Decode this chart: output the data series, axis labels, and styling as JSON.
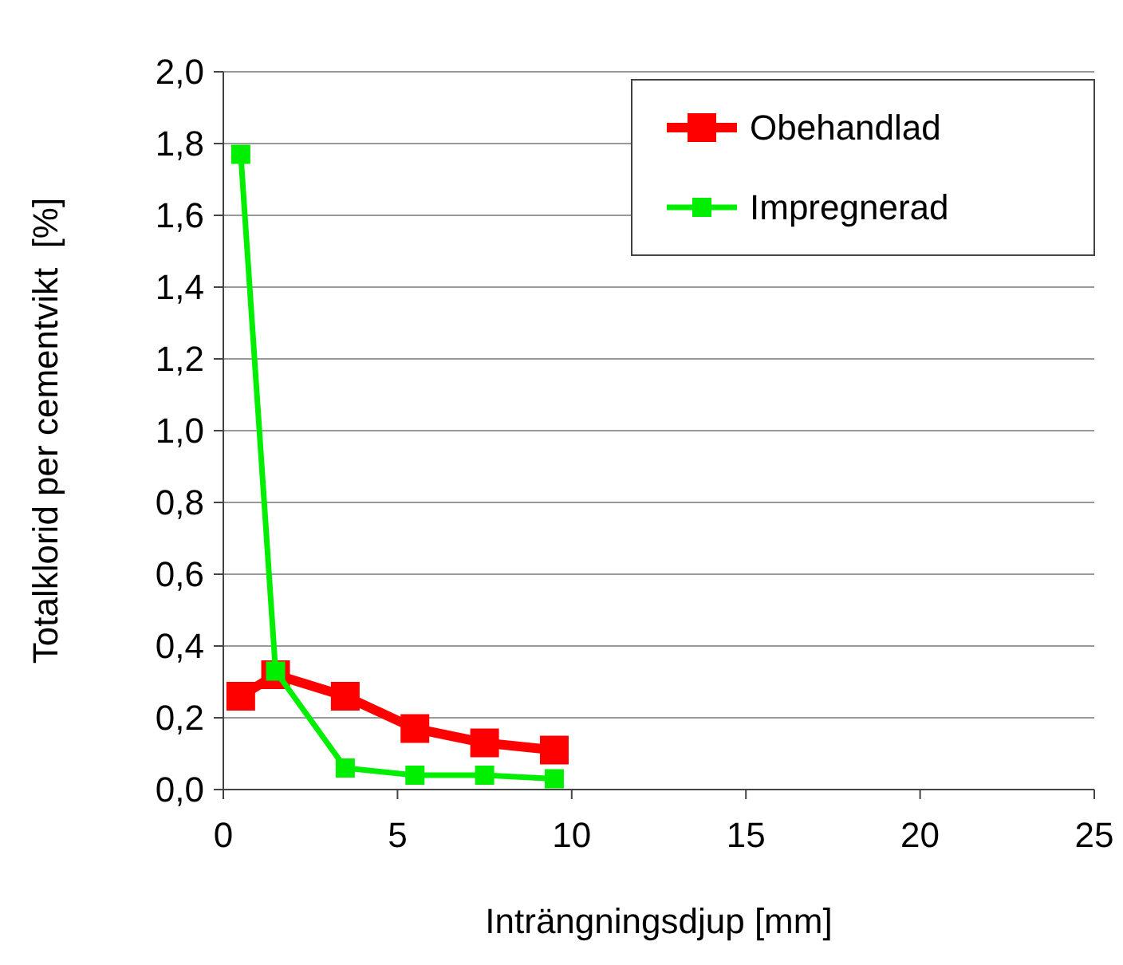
{
  "chart_data": {
    "type": "line",
    "xlabel": "Inträngningsdjup [mm]",
    "ylabel": "Totalklorid per cementvikt  [%]",
    "xlim": [
      0,
      25
    ],
    "xticks": [
      0,
      5,
      10,
      15,
      20,
      25
    ],
    "ylim": [
      0,
      2
    ],
    "yticks": [
      {
        "value": 0,
        "label": "0,0"
      },
      {
        "value": 0.2,
        "label": "0,2"
      },
      {
        "value": 0.4,
        "label": "0,4"
      },
      {
        "value": 0.6,
        "label": "0,6"
      },
      {
        "value": 0.8,
        "label": "0,8"
      },
      {
        "value": 1,
        "label": "1,0"
      },
      {
        "value": 1.2,
        "label": "1,2"
      },
      {
        "value": 1.4,
        "label": "1,4"
      },
      {
        "value": 1.6,
        "label": "1,6"
      },
      {
        "value": 1.8,
        "label": "1,8"
      },
      {
        "value": 2,
        "label": "2,0"
      }
    ],
    "grid": "y",
    "legend": "top right",
    "marker": "square",
    "x": [
      0.5,
      1.5,
      3.5,
      5.5,
      7.5,
      9.5
    ],
    "series": [
      {
        "name": "Obehandlad",
        "color": "#ff0000",
        "values": [
          0.26,
          0.32,
          0.26,
          0.17,
          0.13,
          0.11
        ]
      },
      {
        "name": "Impregnerad",
        "color": "#00ee00",
        "values": [
          1.77,
          0.33,
          0.06,
          0.04,
          0.04,
          0.03
        ]
      }
    ]
  }
}
